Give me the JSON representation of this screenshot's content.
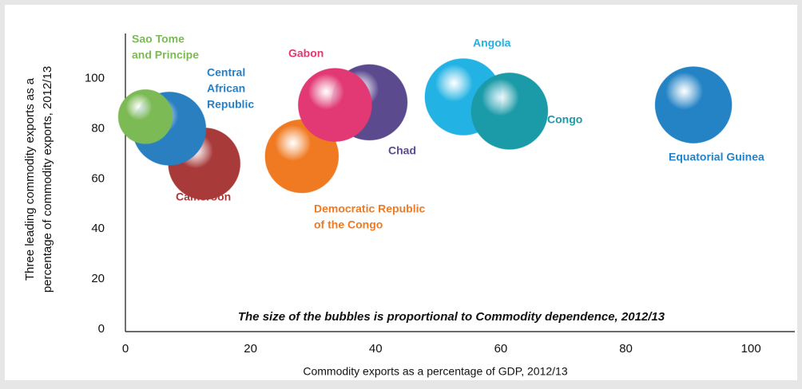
{
  "chart_data": {
    "type": "bubble",
    "annotation": "The size of the bubbles is proportional to Commodity dependence, 2012/13",
    "x_label": "Commodity exports as a percentage of GDP, 2012/13",
    "y_label": [
      "Three leading commodity exports as a",
      "percentage of commodity exports, 2012/13"
    ],
    "xlim": [
      0,
      107
    ],
    "xticks": [
      0,
      20,
      40,
      60,
      80,
      100
    ],
    "ylim": [
      -1,
      118
    ],
    "yticks": [
      0,
      20,
      40,
      60,
      80,
      100
    ],
    "points": [
      {
        "label": [
          "Cameroon"
        ],
        "color": "#a83a3a",
        "x": 12.6,
        "y": 66,
        "size": 90
      },
      {
        "label": [
          "Central",
          "African",
          "Republic"
        ],
        "color": "#2a7fc1",
        "x": 7,
        "y": 80,
        "size": 92
      },
      {
        "label": [
          "Sao Tome",
          "and Principe"
        ],
        "color": "#7cba55",
        "x": 3.2,
        "y": 84.8,
        "size": 68
      },
      {
        "label": [
          "Democratic Republic",
          "of the Congo"
        ],
        "color": "#f07a22",
        "x": 28.2,
        "y": 69,
        "size": 92
      },
      {
        "label": [
          "Chad"
        ],
        "color": "#5c4a8f",
        "x": 39,
        "y": 90.5,
        "size": 95
      },
      {
        "label": [
          "Gabon"
        ],
        "color": "#e23873",
        "x": 33.5,
        "y": 89.5,
        "size": 92
      },
      {
        "label": [
          "Angola"
        ],
        "color": "#22b2e3",
        "x": 54,
        "y": 92.7,
        "size": 96
      },
      {
        "label": [
          "Congo"
        ],
        "color": "#1b9aa8",
        "x": 61.4,
        "y": 87,
        "size": 96
      },
      {
        "label": [
          "Equatorial Guinea"
        ],
        "color": "#2483c5",
        "x": 90.8,
        "y": 89.5,
        "size": 96
      }
    ]
  }
}
